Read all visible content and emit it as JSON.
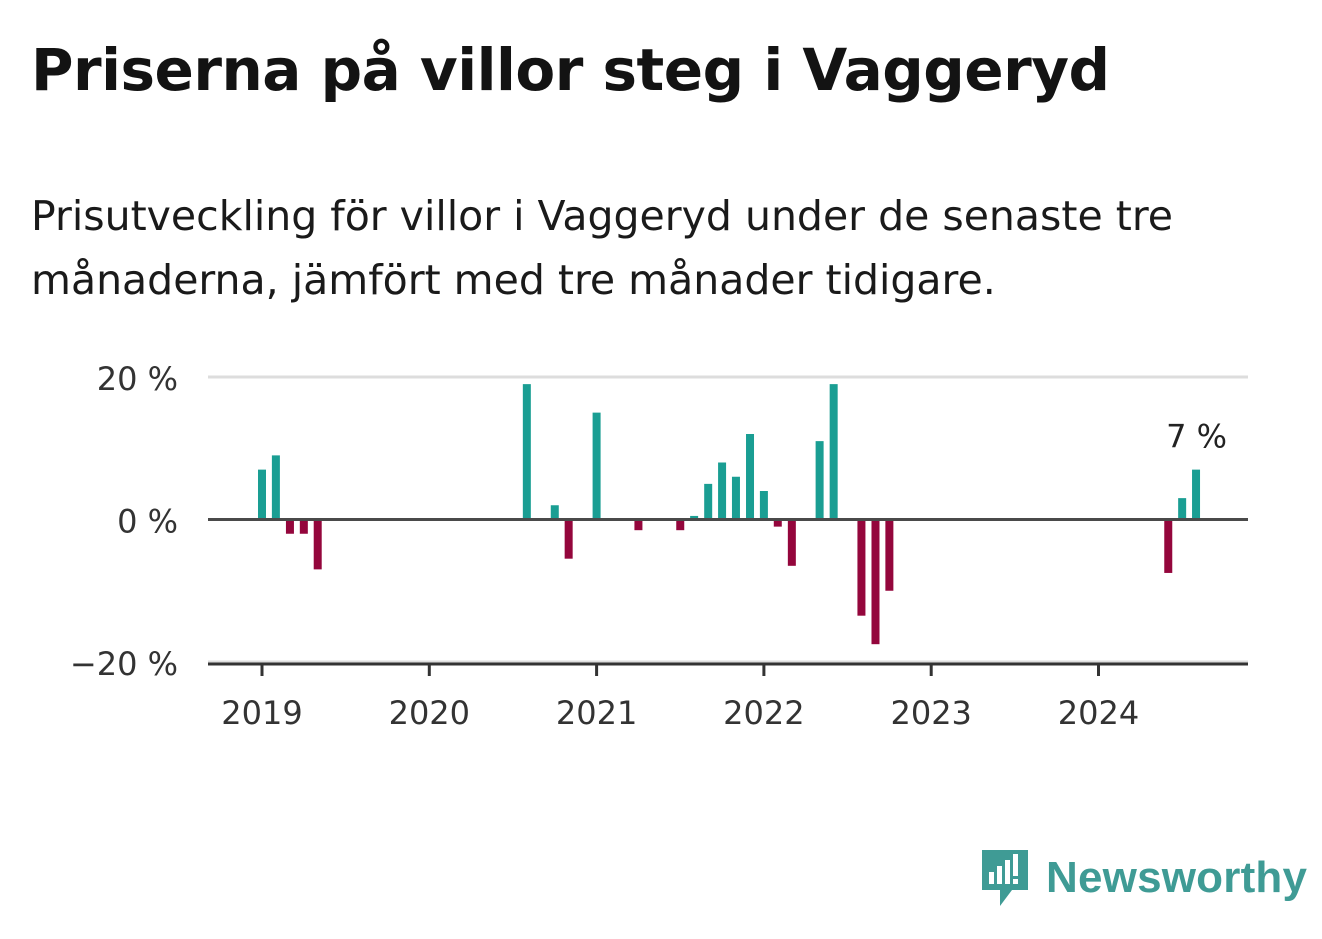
{
  "header": {
    "title": "Priserna på villor steg i Vaggeryd",
    "subtitle": "Prisutveckling för villor i Vaggeryd under de senaste tre månaderna, jämfört med tre månader tidigare."
  },
  "brand": {
    "name": "Newsworthy",
    "color": "#3f9b95"
  },
  "chart_data": {
    "type": "bar",
    "title": "Priserna på villor steg i Vaggeryd",
    "ylim": [
      -20,
      20
    ],
    "yticks": [
      {
        "value": 20,
        "label": "20 %"
      },
      {
        "value": 0,
        "label": "0 %"
      },
      {
        "value": -20,
        "label": "−20 %"
      }
    ],
    "xlim": [
      2018.67,
      2024.92
    ],
    "xticks": [
      {
        "value": 2019,
        "label": "2019"
      },
      {
        "value": 2020,
        "label": "2020"
      },
      {
        "value": 2021,
        "label": "2021"
      },
      {
        "value": 2022,
        "label": "2022"
      },
      {
        "value": 2023,
        "label": "2023"
      },
      {
        "value": 2024,
        "label": "2024"
      }
    ],
    "grid": true,
    "colors": {
      "positive": "#1a9e93",
      "negative": "#94063c"
    },
    "annotation": {
      "x": 2024.58,
      "y": 7,
      "label": "7 %"
    },
    "x": [
      2019.0,
      2019.083,
      2019.167,
      2019.25,
      2019.333,
      2020.583,
      2020.75,
      2020.833,
      2021.0,
      2021.25,
      2021.5,
      2021.583,
      2021.667,
      2021.75,
      2021.833,
      2021.917,
      2022.0,
      2022.083,
      2022.167,
      2022.333,
      2022.417,
      2022.583,
      2022.667,
      2022.75,
      2024.417,
      2024.5,
      2024.583
    ],
    "values": [
      7,
      9,
      -2,
      -2,
      -7,
      19,
      2,
      -5.5,
      15,
      -1.5,
      -1.5,
      0.5,
      5,
      8,
      6,
      12,
      4,
      -1,
      -6.5,
      11,
      19,
      -13.5,
      -17.5,
      -10,
      -7.5,
      3,
      7
    ]
  }
}
